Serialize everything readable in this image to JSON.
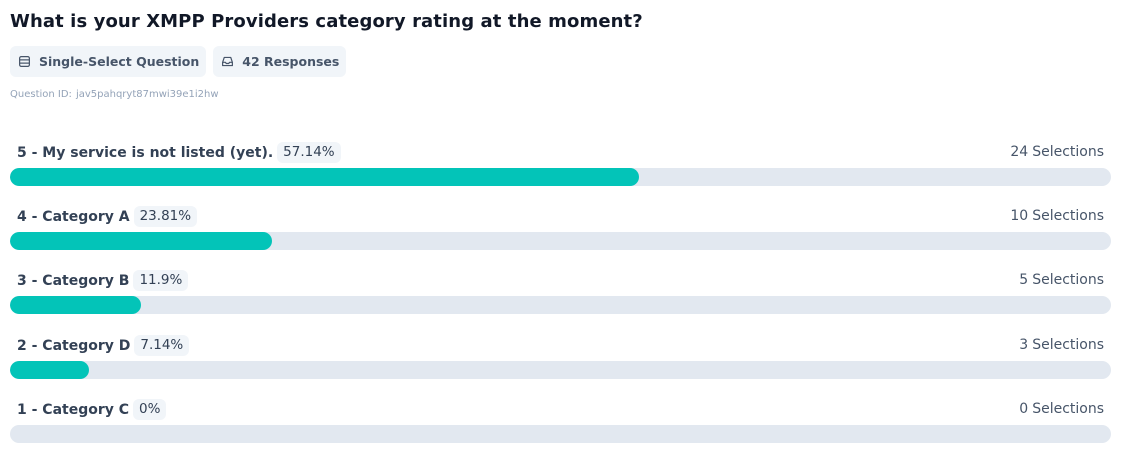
{
  "question": {
    "title": "What is your XMPP Providers category rating at the moment?",
    "type_label": "Single-Select Question",
    "responses_label": "42 Responses",
    "id_label": "Question ID:",
    "id_value": "jav5pahqryt87mwi39e1i2hw"
  },
  "icons": {
    "type": "list-rows-icon",
    "responses": "inbox-icon"
  },
  "colors": {
    "bar_fill": "#03c4b8",
    "bar_track": "#e2e8f0",
    "badge_bg": "#f1f5f9"
  },
  "options": [
    {
      "label": "5 - My service is not listed (yet).",
      "percent": "57.14%",
      "fraction": 0.5714,
      "count": "24",
      "count_suffix": "Selections"
    },
    {
      "label": "4 - Category A",
      "percent": "23.81%",
      "fraction": 0.2381,
      "count": "10",
      "count_suffix": "Selections"
    },
    {
      "label": "3 - Category B",
      "percent": "11.9%",
      "fraction": 0.119,
      "count": "5",
      "count_suffix": "Selections"
    },
    {
      "label": "2 - Category D",
      "percent": "7.14%",
      "fraction": 0.0714,
      "count": "3",
      "count_suffix": "Selections"
    },
    {
      "label": "1 - Category C",
      "percent": "0%",
      "fraction": 0,
      "count": "0",
      "count_suffix": "Selections"
    }
  ]
}
